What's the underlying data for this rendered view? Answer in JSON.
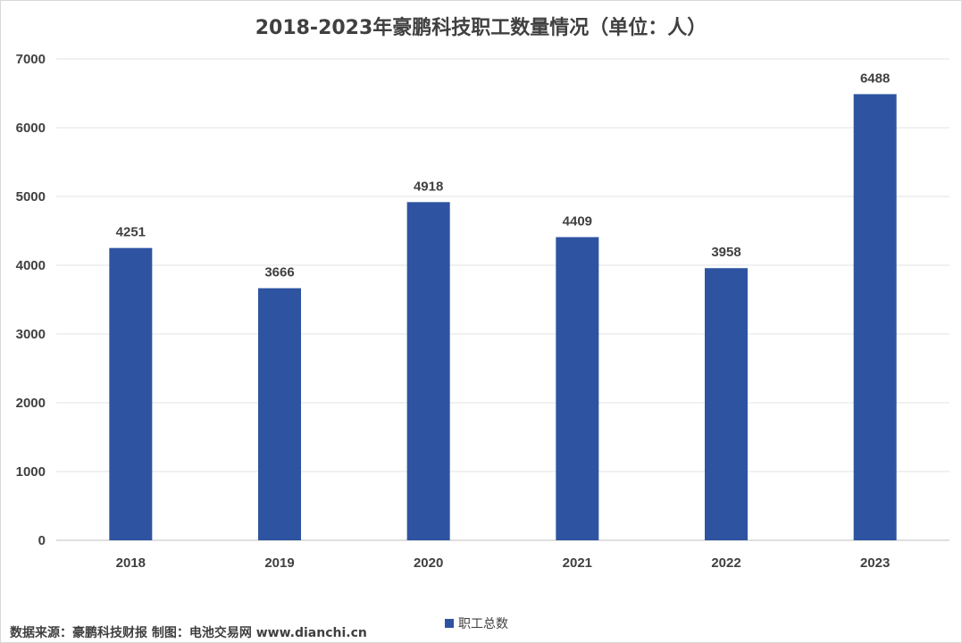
{
  "chart_data": {
    "type": "bar",
    "title": "2018-2023年豪鹏科技职工数量情况（单位：人）",
    "categories": [
      "2018",
      "2019",
      "2020",
      "2021",
      "2022",
      "2023"
    ],
    "series": [
      {
        "name": "职工总数",
        "values": [
          4251,
          3666,
          4918,
          4409,
          3958,
          6488
        ]
      }
    ],
    "ylim": [
      0,
      7000
    ],
    "yticks": [
      0,
      1000,
      2000,
      3000,
      4000,
      5000,
      6000,
      7000
    ],
    "grid": true,
    "legend": "bottom-center",
    "bar_color": "#2e54a1"
  },
  "footer": {
    "source": "数据来源：豪鹏科技财报  制图：电池交易网 www.dianchi.cn"
  }
}
